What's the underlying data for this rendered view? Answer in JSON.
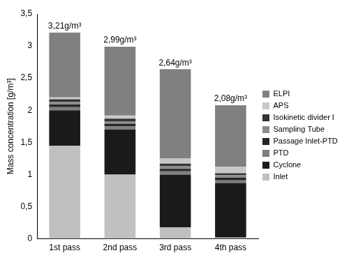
{
  "chart_data": {
    "type": "bar",
    "stacked": true,
    "y_label": "Mass concentration [g/m³]",
    "categories": [
      "1st pass",
      "2nd pass",
      "3rd pass",
      "4th pass"
    ],
    "total_labels": [
      "3,21g/m³",
      "2,99g/m³",
      "2,64g/m³",
      "2,08g/m³"
    ],
    "series": [
      {
        "name": "Inlet",
        "color": "#c0c0c0",
        "values": [
          1.45,
          1.0,
          0.18,
          0.02
        ]
      },
      {
        "name": "Cyclone",
        "color": "#1a1a1a",
        "values": [
          0.55,
          0.7,
          0.82,
          0.85
        ]
      },
      {
        "name": "PTD",
        "color": "#7f7f7f",
        "values": [
          0.05,
          0.05,
          0.05,
          0.04
        ]
      },
      {
        "name": "Passage Inlet-PTD",
        "color": "#262626",
        "values": [
          0.04,
          0.04,
          0.04,
          0.04
        ]
      },
      {
        "name": "Sampling Tube",
        "color": "#8c8c8c",
        "values": [
          0.04,
          0.04,
          0.04,
          0.04
        ]
      },
      {
        "name": "Isokinetic divider I",
        "color": "#333333",
        "values": [
          0.04,
          0.04,
          0.04,
          0.03
        ]
      },
      {
        "name": "APS",
        "color": "#c8c8c8",
        "values": [
          0.03,
          0.05,
          0.08,
          0.1
        ]
      },
      {
        "name": "ELPI",
        "color": "#808080",
        "values": [
          1.01,
          1.07,
          1.39,
          0.96
        ]
      }
    ],
    "ylim": [
      0,
      3.5
    ],
    "yticks": [
      0,
      {
        "value": 0.5,
        "label": "0,5"
      },
      1,
      {
        "value": 1.5,
        "label": "1,5"
      },
      2,
      {
        "value": 2.5,
        "label": "2,5"
      },
      3,
      {
        "value": 3.5,
        "label": "3,5"
      }
    ],
    "grid": false,
    "legend": "right"
  }
}
